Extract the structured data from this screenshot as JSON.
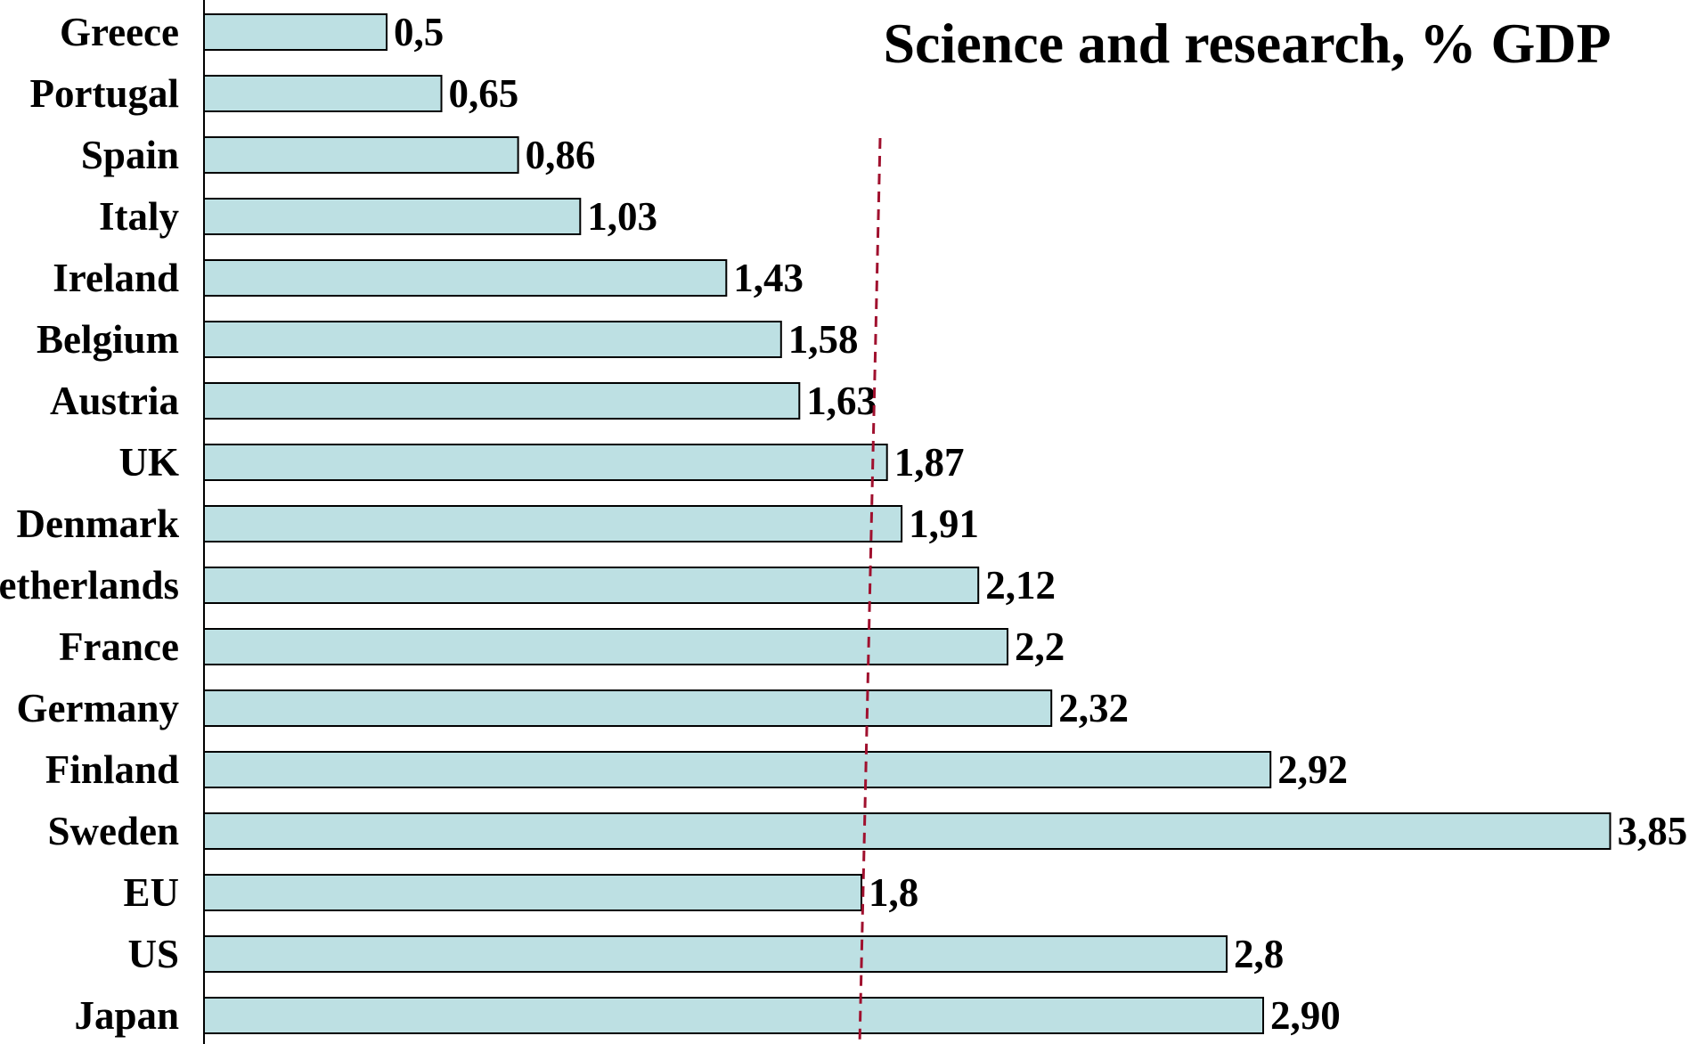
{
  "chart_data": {
    "type": "bar",
    "orientation": "horizontal",
    "title": "Science and research, % GDP",
    "xlabel": "",
    "ylabel": "",
    "categories": [
      "Greece",
      "Portugal",
      "Spain",
      "Italy",
      "Ireland",
      "Belgium",
      "Austria",
      "UK",
      "Denmark",
      "Netherlands",
      "France",
      "Germany",
      "Finland",
      "Sweden",
      "EU",
      "US",
      "Japan"
    ],
    "values": [
      0.5,
      0.65,
      0.86,
      1.03,
      1.43,
      1.58,
      1.63,
      1.87,
      1.91,
      2.12,
      2.2,
      2.32,
      2.92,
      3.85,
      1.8,
      2.8,
      2.9
    ],
    "value_labels": [
      "0,5",
      "0,65",
      "0,86",
      "1,03",
      "1,43",
      "1,58",
      "1,63",
      "1,87",
      "1,91",
      "2,12",
      "2,2",
      "2,32",
      "2,92",
      "3,85",
      "1,8",
      "2,8",
      "2,90"
    ],
    "xlim": [
      0,
      4
    ],
    "reference_line": {
      "value": 1.8,
      "style": "dashed",
      "color": "#a0102e"
    },
    "grid": false,
    "bar_color": "#bde0e3",
    "bar_edge_color": "#000000"
  }
}
